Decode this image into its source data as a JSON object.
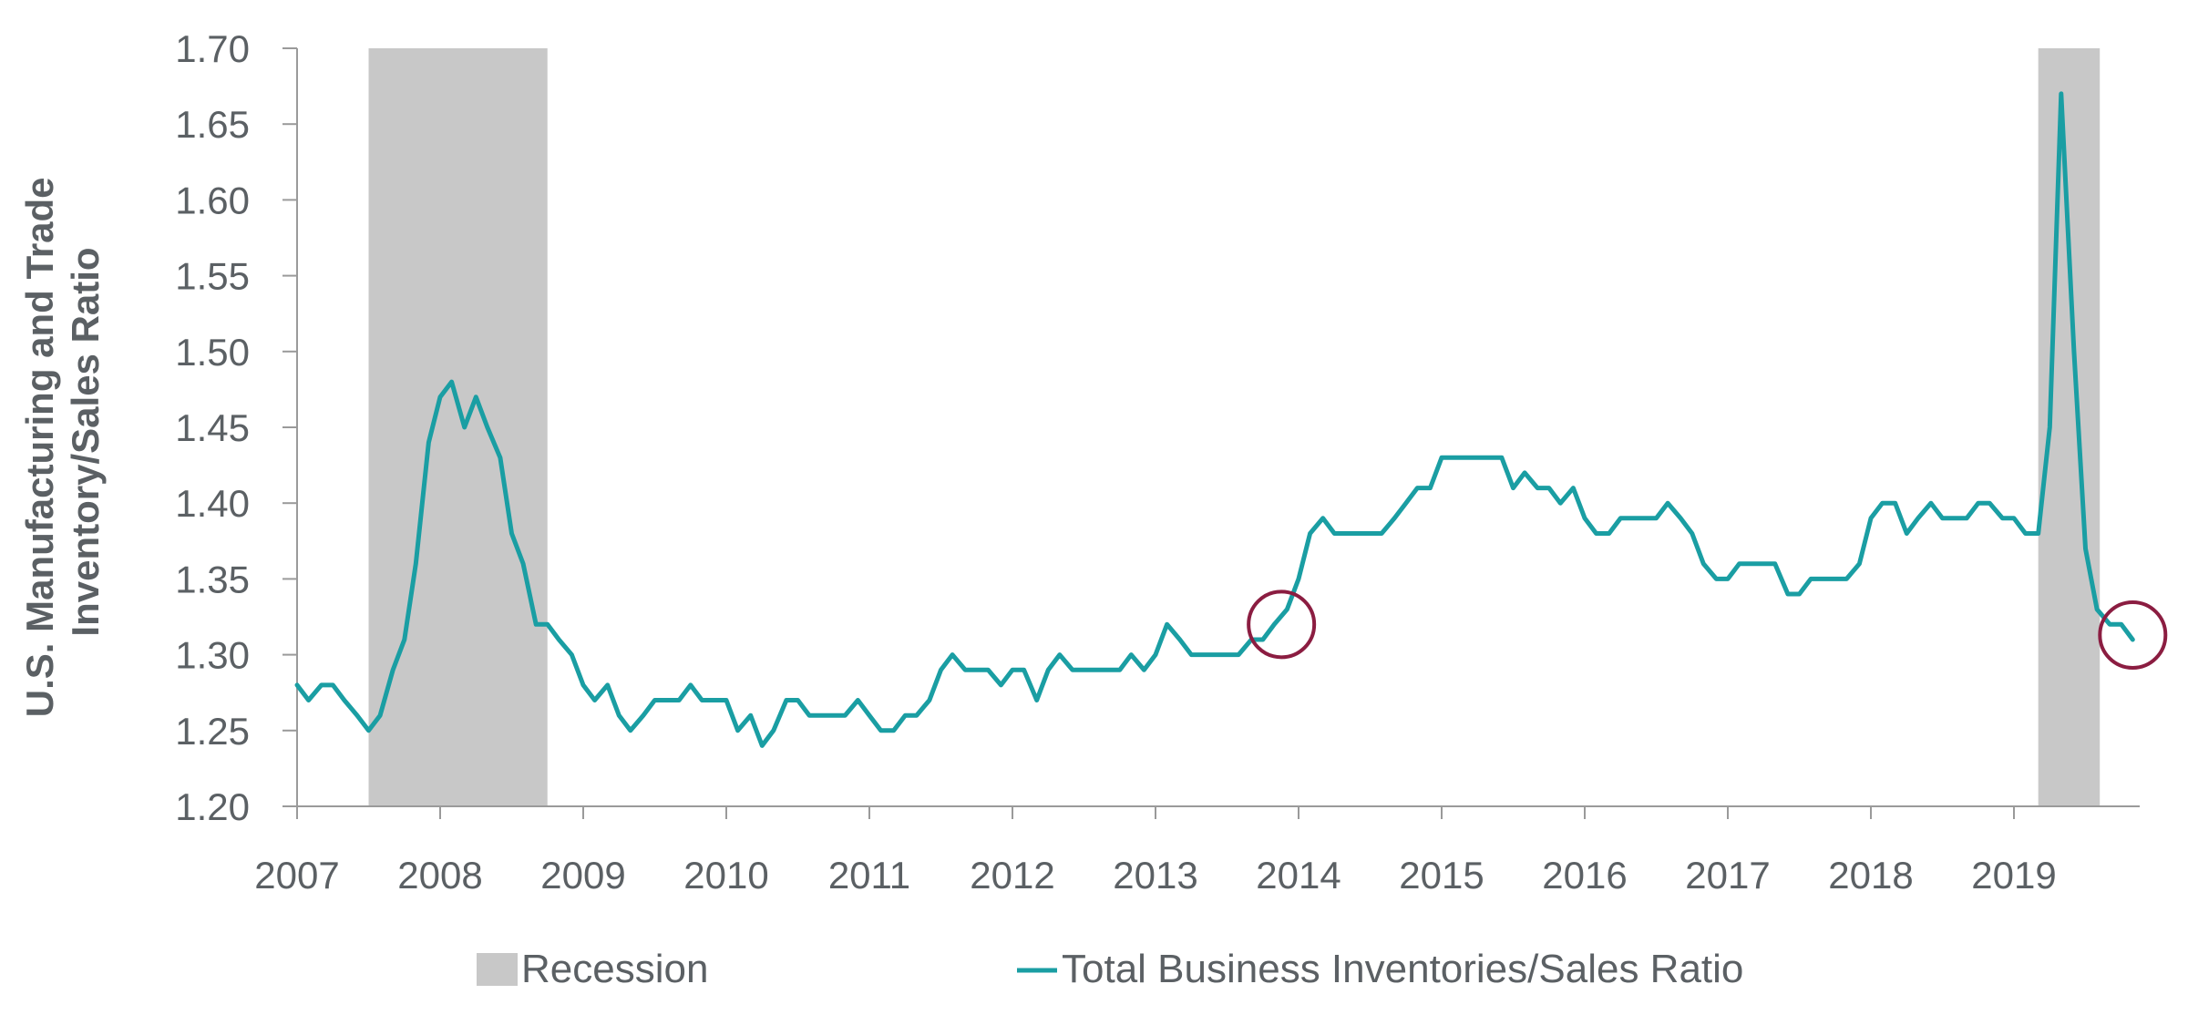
{
  "chart_data": {
    "type": "line",
    "title": "",
    "xlabel": "",
    "ylabel_lines": [
      "U.S. Manufacturing and Trade",
      "Inventory/Sales Ratio"
    ],
    "ylim": [
      1.2,
      1.7
    ],
    "yticks": [
      "1.20",
      "1.25",
      "1.30",
      "1.35",
      "1.40",
      "1.45",
      "1.50",
      "1.55",
      "1.60",
      "1.65",
      "1.70"
    ],
    "xlim": [
      2007,
      2019.9
    ],
    "xticks": [
      "2007",
      "2008",
      "2009",
      "2010",
      "2011",
      "2012",
      "2013",
      "2014",
      "2015",
      "2016",
      "2017",
      "2018",
      "2019"
    ],
    "grid": false,
    "legend_position": "bottom",
    "legend": {
      "recession": "Recession",
      "series": "Total Business Inventories/Sales Ratio"
    },
    "recessions": [
      {
        "start": 2007.5,
        "end": 2008.75
      },
      {
        "start": 2019.17,
        "end": 2019.6
      }
    ],
    "annotations": [
      {
        "type": "circle",
        "x": 2013.88,
        "y": 1.32
      },
      {
        "type": "circle",
        "x": 2019.83,
        "y": 1.313
      }
    ],
    "series": [
      {
        "name": "Total Business Inventories/Sales Ratio",
        "color": "#1a9ea3",
        "points": [
          [
            2007.0,
            1.28
          ],
          [
            2007.08,
            1.27
          ],
          [
            2007.17,
            1.28
          ],
          [
            2007.25,
            1.28
          ],
          [
            2007.33,
            1.27
          ],
          [
            2007.42,
            1.26
          ],
          [
            2007.5,
            1.25
          ],
          [
            2007.58,
            1.26
          ],
          [
            2007.67,
            1.29
          ],
          [
            2007.75,
            1.31
          ],
          [
            2007.83,
            1.36
          ],
          [
            2007.92,
            1.44
          ],
          [
            2008.0,
            1.47
          ],
          [
            2008.08,
            1.48
          ],
          [
            2008.17,
            1.45
          ],
          [
            2008.25,
            1.47
          ],
          [
            2008.33,
            1.45
          ],
          [
            2008.42,
            1.43
          ],
          [
            2008.5,
            1.38
          ],
          [
            2008.58,
            1.36
          ],
          [
            2008.67,
            1.32
          ],
          [
            2008.75,
            1.32
          ],
          [
            2008.83,
            1.31
          ],
          [
            2008.92,
            1.3
          ],
          [
            2009.0,
            1.28
          ],
          [
            2009.08,
            1.27
          ],
          [
            2009.17,
            1.28
          ],
          [
            2009.25,
            1.26
          ],
          [
            2009.33,
            1.25
          ],
          [
            2009.42,
            1.26
          ],
          [
            2009.5,
            1.27
          ],
          [
            2009.58,
            1.27
          ],
          [
            2009.67,
            1.27
          ],
          [
            2009.75,
            1.28
          ],
          [
            2009.83,
            1.27
          ],
          [
            2009.92,
            1.27
          ],
          [
            2010.0,
            1.27
          ],
          [
            2010.08,
            1.25
          ],
          [
            2010.17,
            1.26
          ],
          [
            2010.25,
            1.24
          ],
          [
            2010.33,
            1.25
          ],
          [
            2010.42,
            1.27
          ],
          [
            2010.5,
            1.27
          ],
          [
            2010.58,
            1.26
          ],
          [
            2010.67,
            1.26
          ],
          [
            2010.75,
            1.26
          ],
          [
            2010.83,
            1.26
          ],
          [
            2010.92,
            1.27
          ],
          [
            2011.0,
            1.26
          ],
          [
            2011.08,
            1.25
          ],
          [
            2011.17,
            1.25
          ],
          [
            2011.25,
            1.26
          ],
          [
            2011.33,
            1.26
          ],
          [
            2011.42,
            1.27
          ],
          [
            2011.5,
            1.29
          ],
          [
            2011.58,
            1.3
          ],
          [
            2011.67,
            1.29
          ],
          [
            2011.75,
            1.29
          ],
          [
            2011.83,
            1.29
          ],
          [
            2011.92,
            1.28
          ],
          [
            2012.0,
            1.29
          ],
          [
            2012.08,
            1.29
          ],
          [
            2012.17,
            1.27
          ],
          [
            2012.25,
            1.29
          ],
          [
            2012.33,
            1.3
          ],
          [
            2012.42,
            1.29
          ],
          [
            2012.5,
            1.29
          ],
          [
            2012.58,
            1.29
          ],
          [
            2012.67,
            1.29
          ],
          [
            2012.75,
            1.29
          ],
          [
            2012.83,
            1.3
          ],
          [
            2012.92,
            1.29
          ],
          [
            2013.0,
            1.3
          ],
          [
            2013.08,
            1.32
          ],
          [
            2013.17,
            1.31
          ],
          [
            2013.25,
            1.3
          ],
          [
            2013.33,
            1.3
          ],
          [
            2013.42,
            1.3
          ],
          [
            2013.5,
            1.3
          ],
          [
            2013.58,
            1.3
          ],
          [
            2013.67,
            1.31
          ],
          [
            2013.75,
            1.31
          ],
          [
            2013.83,
            1.32
          ],
          [
            2013.92,
            1.33
          ],
          [
            2014.0,
            1.35
          ],
          [
            2014.08,
            1.38
          ],
          [
            2014.17,
            1.39
          ],
          [
            2014.25,
            1.38
          ],
          [
            2014.33,
            1.38
          ],
          [
            2014.42,
            1.38
          ],
          [
            2014.5,
            1.38
          ],
          [
            2014.58,
            1.38
          ],
          [
            2014.67,
            1.39
          ],
          [
            2014.75,
            1.4
          ],
          [
            2014.83,
            1.41
          ],
          [
            2014.92,
            1.41
          ],
          [
            2015.0,
            1.43
          ],
          [
            2015.08,
            1.43
          ],
          [
            2015.17,
            1.43
          ],
          [
            2015.25,
            1.43
          ],
          [
            2015.33,
            1.43
          ],
          [
            2015.42,
            1.43
          ],
          [
            2015.5,
            1.41
          ],
          [
            2015.58,
            1.42
          ],
          [
            2015.67,
            1.41
          ],
          [
            2015.75,
            1.41
          ],
          [
            2015.83,
            1.4
          ],
          [
            2015.92,
            1.41
          ],
          [
            2016.0,
            1.39
          ],
          [
            2016.08,
            1.38
          ],
          [
            2016.17,
            1.38
          ],
          [
            2016.25,
            1.39
          ],
          [
            2016.33,
            1.39
          ],
          [
            2016.42,
            1.39
          ],
          [
            2016.5,
            1.39
          ],
          [
            2016.58,
            1.4
          ],
          [
            2016.67,
            1.39
          ],
          [
            2016.75,
            1.38
          ],
          [
            2016.83,
            1.36
          ],
          [
            2016.92,
            1.35
          ],
          [
            2017.0,
            1.35
          ],
          [
            2017.08,
            1.36
          ],
          [
            2017.17,
            1.36
          ],
          [
            2017.25,
            1.36
          ],
          [
            2017.33,
            1.36
          ],
          [
            2017.42,
            1.34
          ],
          [
            2017.5,
            1.34
          ],
          [
            2017.58,
            1.35
          ],
          [
            2017.67,
            1.35
          ],
          [
            2017.75,
            1.35
          ],
          [
            2017.83,
            1.35
          ],
          [
            2017.92,
            1.36
          ],
          [
            2018.0,
            1.39
          ],
          [
            2018.08,
            1.4
          ],
          [
            2018.17,
            1.4
          ],
          [
            2018.25,
            1.38
          ],
          [
            2018.33,
            1.39
          ],
          [
            2018.42,
            1.4
          ],
          [
            2018.5,
            1.39
          ],
          [
            2018.58,
            1.39
          ],
          [
            2018.67,
            1.39
          ],
          [
            2018.75,
            1.4
          ],
          [
            2018.83,
            1.4
          ],
          [
            2018.92,
            1.39
          ],
          [
            2019.0,
            1.39
          ],
          [
            2019.08,
            1.38
          ],
          [
            2019.17,
            1.38
          ],
          [
            2019.25,
            1.45
          ],
          [
            2019.33,
            1.67
          ],
          [
            2019.42,
            1.5
          ],
          [
            2019.5,
            1.37
          ],
          [
            2019.58,
            1.33
          ],
          [
            2019.67,
            1.32
          ],
          [
            2019.75,
            1.32
          ],
          [
            2019.83,
            1.31
          ]
        ]
      }
    ],
    "colors": {
      "line": "#1a9ea3",
      "recession": "#c8c8c8",
      "annotation": "#8b1d41",
      "axis": "#5b6064",
      "text": "#5b6064"
    }
  }
}
